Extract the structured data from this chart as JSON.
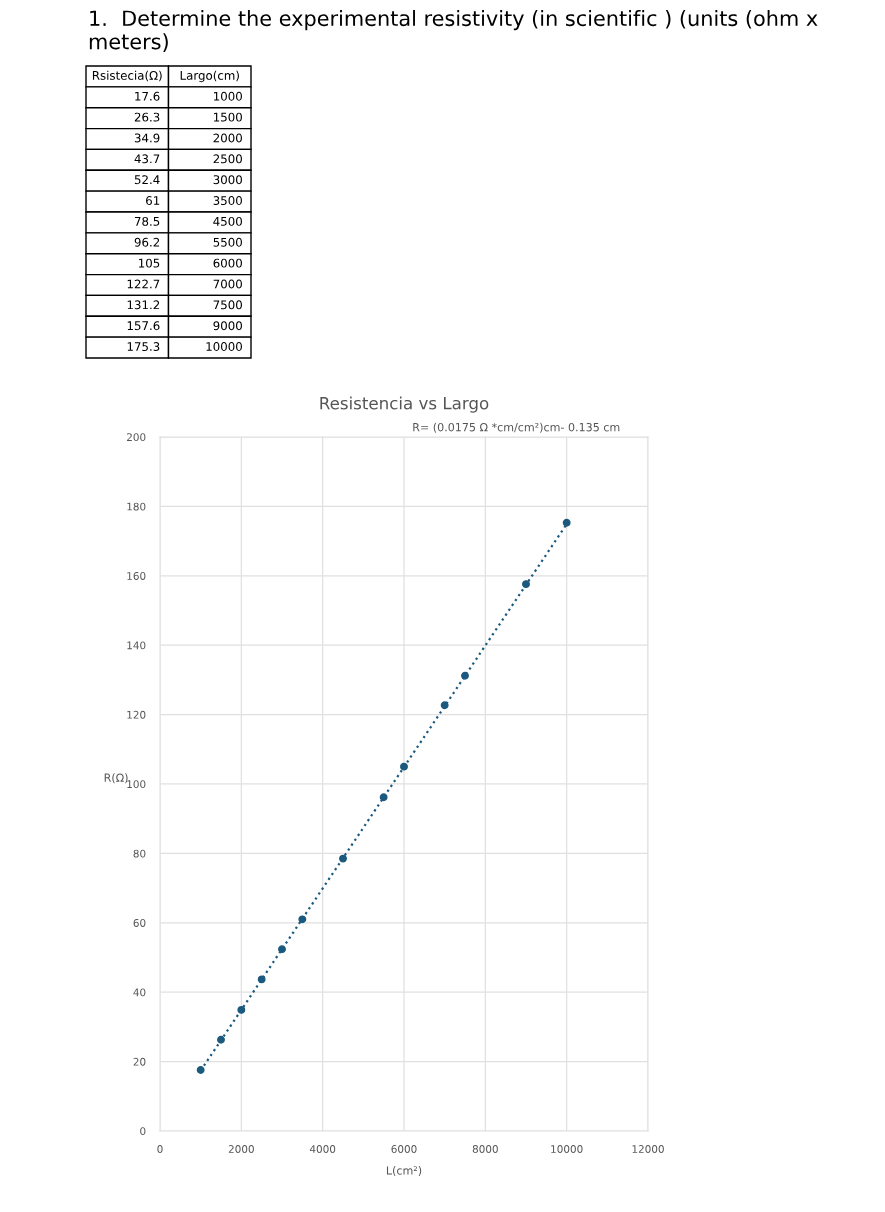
{
  "chart_data": [
    {
      "type": "other",
      "title": "1.  Determine the experimental resistivity (in scientific ) (units (ohm x meters)",
      "annotations": [
        "Rsistecia(Ω)",
        "Largo(cm)",
        "17.6",
        "1000",
        "26.3",
        "1500",
        "34.9",
        "2000",
        "43.7",
        "2500",
        "52.4",
        "3000",
        "61",
        "3500",
        "78.5",
        "4500",
        "96.2",
        "5500",
        "105",
        "6000",
        "122.7",
        "7000",
        "131.2",
        "7500",
        "157.6",
        "9000",
        "175.3",
        "10000"
      ]
    },
    {
      "type": "scatter",
      "title": "Resistencia vs Largo",
      "subtitle": "R= (0.0175 Ω *cm/cm²)cm- 0.135 cm",
      "xlabel": "L(cm²)",
      "ylabel": "R(Ω)",
      "series": [
        {
          "color": "#1b5a7e",
          "x": [
            1000,
            1500,
            2000,
            2500,
            3000,
            3500,
            4500,
            5500,
            6000,
            7000,
            7500,
            9000,
            10000
          ],
          "values": [
            17.6,
            26.3,
            34.9,
            43.7,
            52.4,
            61,
            78.5,
            96.2,
            105,
            122.7,
            131.2,
            157.6,
            175.3
          ]
        },
        {
          "type": "line",
          "color": "#1b5a7e",
          "x": [
            1000,
            10000
          ],
          "values": [
            17.4,
            174.9
          ],
          "line_style": "dotted",
          "marker": "none"
        }
      ],
      "marker": "circle",
      "xlim": [
        0,
        12000
      ],
      "xticks": [
        0,
        2000,
        4000,
        6000,
        8000,
        10000,
        12000
      ],
      "ylim": [
        0,
        200
      ],
      "yticks": [
        0,
        20,
        40,
        60,
        80,
        100,
        120,
        140,
        160,
        180,
        200
      ],
      "grid": true
    }
  ]
}
